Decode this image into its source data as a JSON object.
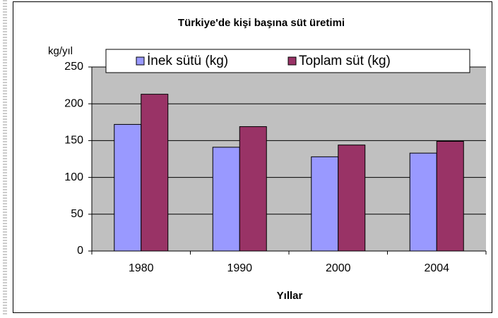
{
  "chart_data": {
    "type": "bar",
    "title": "Türkiye'de kişi başına süt üretimi",
    "y_label": "kg/yıl",
    "x_label": "Yıllar",
    "categories": [
      "1980",
      "1990",
      "2000",
      "2004"
    ],
    "series": [
      {
        "name": "İnek sütü (kg)",
        "color": "#9999ff",
        "values": [
          172,
          141,
          128,
          133
        ]
      },
      {
        "name": "Toplam süt (kg)",
        "color": "#993366",
        "values": [
          213,
          169,
          144,
          149
        ]
      }
    ],
    "ylim": [
      0,
      250
    ],
    "yticks": [
      0,
      50,
      100,
      150,
      200,
      250
    ],
    "grid": true,
    "legend": "top",
    "plot_background": "#c0c0c0"
  }
}
